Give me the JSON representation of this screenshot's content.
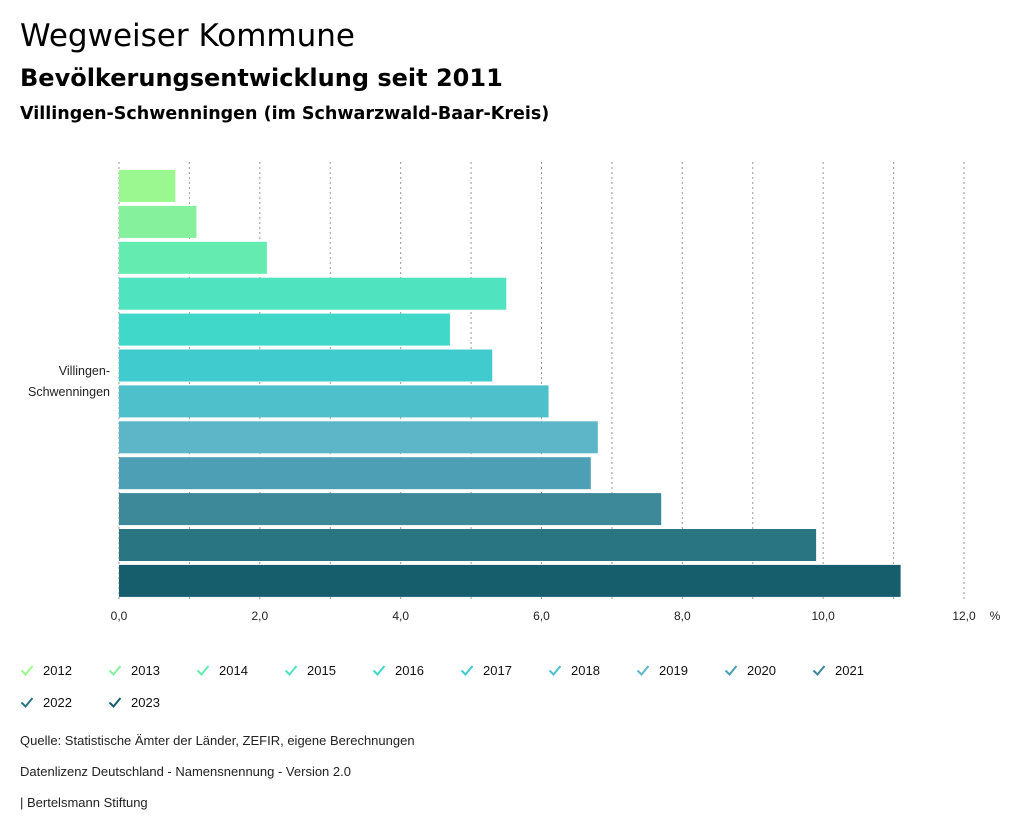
{
  "header": {
    "title": "Wegweiser Kommune",
    "subtitle": "Bevölkerungsentwicklung seit 2011",
    "place": "Villingen-Schwenningen (im Schwarzwald-Baar-Kreis)"
  },
  "chart_data": {
    "type": "bar",
    "orientation": "horizontal",
    "category": "Villingen-Schwenningen",
    "category_lines": [
      "Villingen-",
      "Schwenningen"
    ],
    "unit": "%",
    "xlim": [
      0,
      12
    ],
    "xticks": [
      "0,0",
      "2,0",
      "4,0",
      "6,0",
      "8,0",
      "10,0",
      "12,0"
    ],
    "grid": true,
    "series": [
      {
        "name": "2012",
        "value": 0.8,
        "color": "#9bf78f"
      },
      {
        "name": "2013",
        "value": 1.1,
        "color": "#86f19d"
      },
      {
        "name": "2014",
        "value": 2.1,
        "color": "#64ebb0"
      },
      {
        "name": "2015",
        "value": 5.5,
        "color": "#4fe3c0"
      },
      {
        "name": "2016",
        "value": 4.7,
        "color": "#40d8c8"
      },
      {
        "name": "2017",
        "value": 5.3,
        "color": "#40cbcf"
      },
      {
        "name": "2018",
        "value": 6.1,
        "color": "#4dc0cc"
      },
      {
        "name": "2019",
        "value": 6.8,
        "color": "#5db6c8"
      },
      {
        "name": "2020",
        "value": 6.7,
        "color": "#4c9fb4"
      },
      {
        "name": "2021",
        "value": 7.7,
        "color": "#3d899a"
      },
      {
        "name": "2022",
        "value": 9.9,
        "color": "#2a7582"
      },
      {
        "name": "2023",
        "value": 11.1,
        "color": "#165e6c"
      }
    ]
  },
  "footer": {
    "source": "Quelle: Statistische Ämter der Länder, ZEFIR, eigene Berechnungen",
    "license": "Datenlizenz Deutschland - Namensnennung - Version 2.0",
    "brand": "| Bertelsmann Stiftung"
  }
}
